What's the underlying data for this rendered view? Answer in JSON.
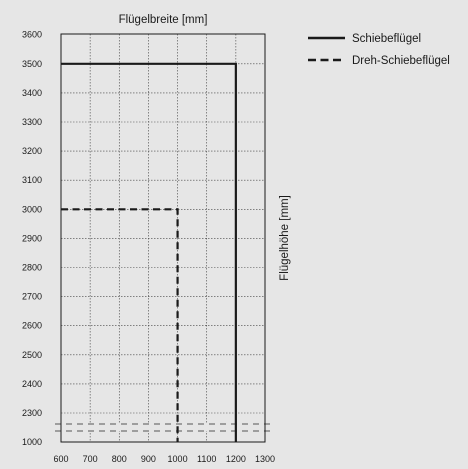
{
  "chart_data": {
    "type": "line",
    "xlabel": "Flügelbreite [mm]",
    "ylabel": "Flügelhöhe [mm]",
    "x_ticks": [
      600,
      700,
      800,
      900,
      1000,
      1100,
      1200,
      1300
    ],
    "y_ticks": [
      1000,
      2300,
      2400,
      2500,
      2600,
      2700,
      2800,
      2900,
      3000,
      3100,
      3200,
      3300,
      3400,
      3500,
      3600
    ],
    "y_axis_break": "between 1000 and 2300",
    "xlim": [
      600,
      1300
    ],
    "ylim": [
      1000,
      3600
    ],
    "grid": true,
    "legend_position": "top-right",
    "series": [
      {
        "name": "Schiebeflügel",
        "style": "solid",
        "color": "#1a1a1a",
        "points": [
          [
            600,
            3500
          ],
          [
            1200,
            3500
          ],
          [
            1200,
            1000
          ]
        ]
      },
      {
        "name": "Dreh-Schiebeflügel",
        "style": "dashed",
        "color": "#1a1a1a",
        "points": [
          [
            600,
            3000
          ],
          [
            1000,
            3000
          ],
          [
            1000,
            1000
          ]
        ]
      }
    ]
  }
}
